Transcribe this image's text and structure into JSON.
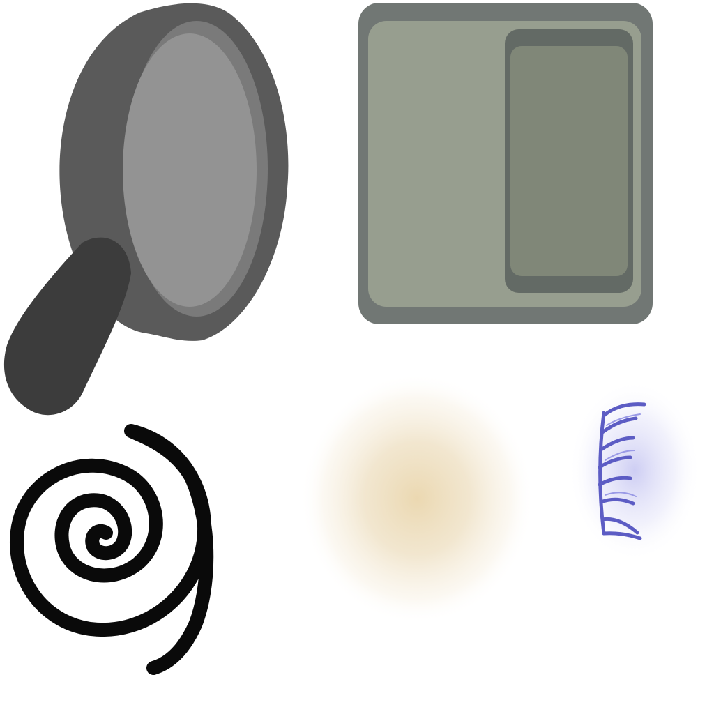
{
  "colors": {
    "background": "#ffffff",
    "pan_rim": "#5a5a5a",
    "pan_lip": "#787878",
    "pan_surface": "#929292",
    "pan_handle": "#3c3c3c",
    "panel_frame": "#717774",
    "panel_fill": "#979e8f",
    "panel_inset_border": "#616763",
    "panel_inset_fill": "#808778",
    "spiral_stroke": "#0a0a0a",
    "dust": "#e6d2aa",
    "claw_stroke": "#5c5cc4",
    "claw_glow": "#b8b8ee"
  },
  "assets": [
    {
      "icon": "frying-pan-icon"
    },
    {
      "icon": "two-pane-panel-icon"
    },
    {
      "icon": "spiral-icon"
    },
    {
      "icon": "dust-cloud-particle"
    },
    {
      "icon": "purple-claw-slash-icon"
    }
  ]
}
